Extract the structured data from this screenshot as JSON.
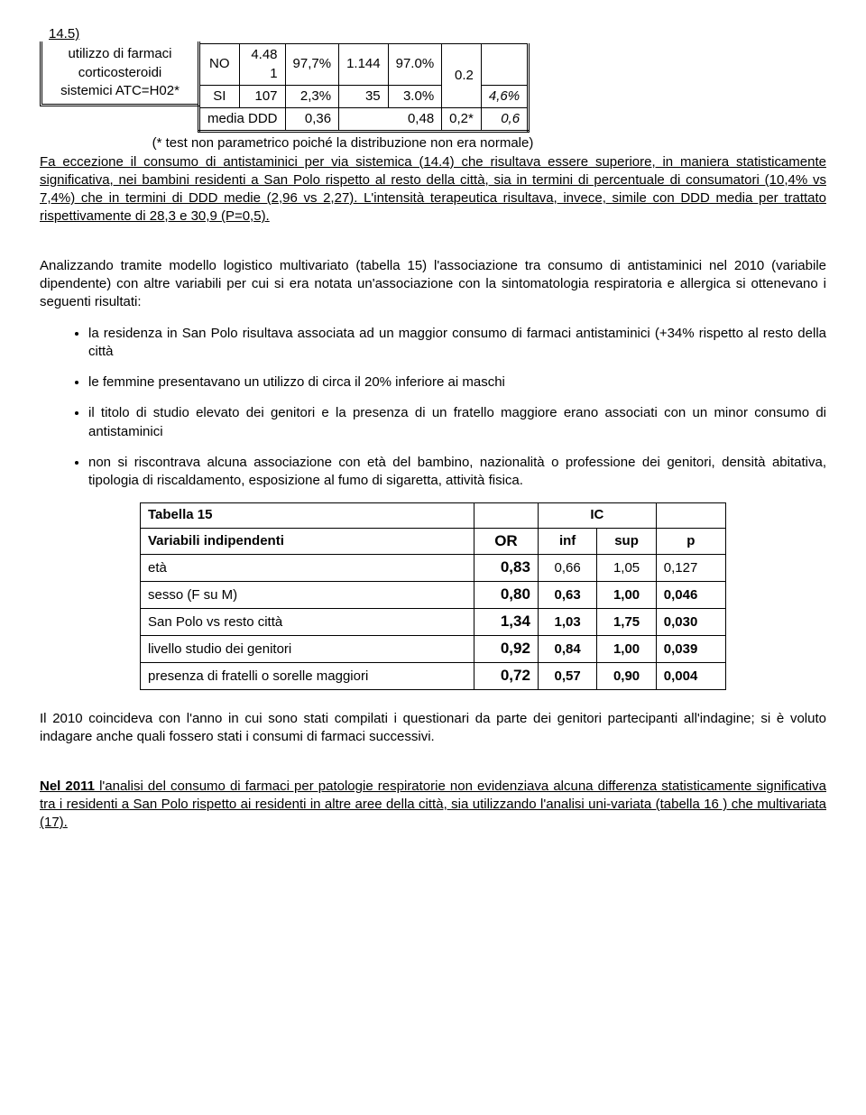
{
  "section_ref": "14.5)",
  "table14": {
    "row_label_line1": "utilizzo di farmaci",
    "row_label_line2": "corticosteroidi",
    "row_label_line3": "sistemici ATC=H02*",
    "rows": [
      {
        "lab": "NO",
        "n": "4.48\n1",
        "pct1": "97,7%",
        "n2": "1.144",
        "pct2": "97.0%",
        "mid": "0.2",
        "right": ""
      },
      {
        "lab": "SI",
        "n": "107",
        "pct1": "2,3%",
        "n2": "35",
        "pct2": "3.0%",
        "mid": "",
        "right": "4,6%"
      }
    ],
    "media_label": "media DDD",
    "media_v1": "0,36",
    "media_v2": "0,48",
    "media_v3": "0,2*",
    "media_v4": "0,6",
    "footnote": "(* test non parametrico poiché la distribuzione non era normale)"
  },
  "para1a": "Fa eccezione il consumo di antistaminici per via sistemica (14.4) che risultava essere superiore, in maniera statisticamente significativa, nei bambini residenti a San Polo rispetto al resto della città, sia in termini di percentuale di consumatori (10,4% vs 7,4%) che in termini di DDD medie (2,96 vs 2,27). L'intensità terapeutica risultava, invece, simile con DDD media per trattato rispettivamente di 28,3 e 30,9 (P=0,5).",
  "para2": "Analizzando tramite modello logistico multivariato (tabella 15) l'associazione tra consumo di antistaminici nel 2010 (variabile dipendente) con altre variabili per cui si era notata un'associazione con la sintomatologia respiratoria e allergica si ottenevano i seguenti risultati:",
  "bullets": [
    "la residenza in San Polo risultava associata ad un maggior consumo di farmaci antistaminici (+34% rispetto al resto della città",
    "le femmine presentavano un utilizzo di circa il 20% inferiore ai maschi",
    "il titolo di studio elevato dei genitori e la presenza di un fratello maggiore erano associati con un minor consumo di antistaminici",
    "non si riscontrava alcuna associazione con età del bambino, nazionalità o professione dei genitori, densità abitativa, tipologia di riscaldamento, esposizione al fumo di sigaretta, attività fisica."
  ],
  "table15": {
    "title": "Tabella 15",
    "var_label": "Variabili indipendenti",
    "or_label": "OR",
    "ic_label": "IC",
    "inf_label": "inf",
    "sup_label": "sup",
    "p_label": "p",
    "rows": [
      {
        "var": "età",
        "or": "0,83",
        "inf": "0,66",
        "sup": "1,05",
        "p": "0,127",
        "bold": false
      },
      {
        "var": "sesso (F su M)",
        "or": "0,80",
        "inf": "0,63",
        "sup": "1,00",
        "p": "0,046",
        "bold": true
      },
      {
        "var": "San Polo vs resto città",
        "or": "1,34",
        "inf": "1,03",
        "sup": "1,75",
        "p": "0,030",
        "bold": true
      },
      {
        "var": "livello studio dei genitori",
        "or": "0,92",
        "inf": "0,84",
        "sup": "1,00",
        "p": "0,039",
        "bold": true
      },
      {
        "var": "presenza di fratelli o sorelle maggiori",
        "or": "0,72",
        "inf": "0,57",
        "sup": "0,90",
        "p": "0,004",
        "bold": true
      }
    ]
  },
  "para3": "Il 2010 coincideva con l'anno in cui sono stati compilati i questionari da parte dei genitori partecipanti all'indagine; si è voluto indagare anche quali fossero stati i consumi di farmaci successivi.",
  "para4_lead": "Nel 2011",
  "para4_mid": " l'analisi del consumo di farmaci per patologie respiratorie non evidenziava alcuna differenza statisticamente significativa tra i residenti a San Polo rispetto ai residenti in altre aree della città",
  "para4_tail": ", sia utilizzando l'analisi uni-variata (tabella 16 ) che multivariata (17)."
}
